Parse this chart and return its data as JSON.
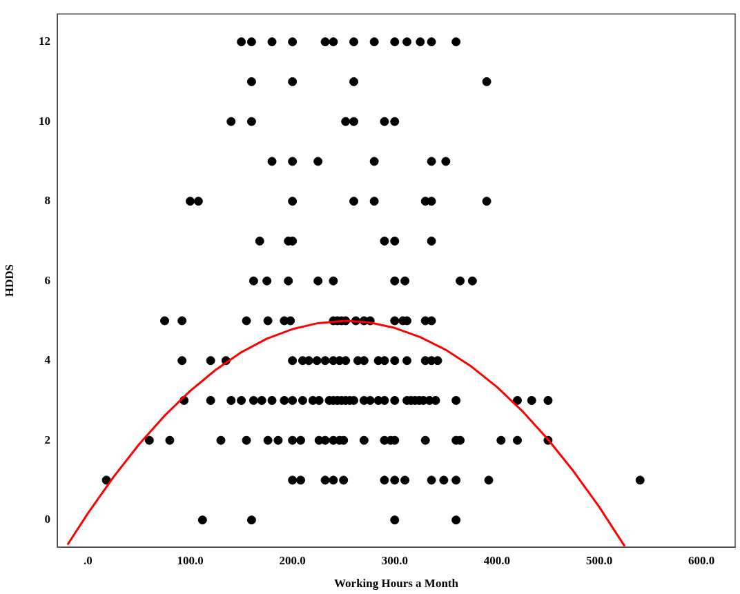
{
  "chart_data": {
    "type": "scatter",
    "xlabel": "Working Hours a Month",
    "ylabel": "HDDS",
    "xlim": [
      -30,
      633
    ],
    "ylim": [
      -0.68,
      12.7
    ],
    "xticks": [
      {
        "value": 0,
        "label": ".0"
      },
      {
        "value": 100,
        "label": "100.0"
      },
      {
        "value": 200,
        "label": "200.0"
      },
      {
        "value": 300,
        "label": "300.0"
      },
      {
        "value": 400,
        "label": "400.0"
      },
      {
        "value": 500,
        "label": "500.0"
      },
      {
        "value": 600,
        "label": "600.0"
      }
    ],
    "yticks": [
      0,
      2,
      4,
      6,
      8,
      10,
      12
    ],
    "grid": false,
    "legend": false,
    "series": [
      {
        "type": "scatter",
        "color": "#000000",
        "marker": "circle",
        "x": [
          150,
          160,
          180,
          200,
          232,
          240,
          260,
          280,
          300,
          312,
          325,
          336,
          360,
          160,
          200,
          260,
          390,
          140,
          160,
          252,
          260,
          290,
          300,
          180,
          200,
          225,
          280,
          336,
          350,
          100,
          108,
          200,
          260,
          280,
          330,
          336,
          390,
          168,
          196,
          200,
          290,
          300,
          336,
          162,
          175,
          196,
          225,
          240,
          300,
          310,
          364,
          376,
          75,
          92,
          155,
          176,
          192,
          198,
          240,
          244,
          248,
          252,
          262,
          270,
          276,
          300,
          308,
          312,
          330,
          336,
          92,
          120,
          135,
          200,
          210,
          216,
          224,
          232,
          240,
          246,
          252,
          264,
          270,
          284,
          290,
          300,
          312,
          330,
          336,
          342,
          94,
          120,
          140,
          150,
          162,
          170,
          180,
          192,
          200,
          210,
          220,
          226,
          236,
          240,
          244,
          248,
          252,
          256,
          260,
          270,
          276,
          284,
          290,
          300,
          312,
          316,
          320,
          324,
          328,
          334,
          340,
          360,
          420,
          434,
          450,
          60,
          80,
          130,
          155,
          176,
          186,
          200,
          208,
          226,
          232,
          240,
          246,
          250,
          270,
          290,
          296,
          300,
          330,
          360,
          364,
          404,
          420,
          450,
          18,
          200,
          208,
          232,
          240,
          250,
          290,
          300,
          310,
          336,
          348,
          360,
          392,
          540,
          112,
          160,
          300,
          360
        ],
        "values": [
          12,
          12,
          12,
          12,
          12,
          12,
          12,
          12,
          12,
          12,
          12,
          12,
          12,
          11,
          11,
          11,
          11,
          10,
          10,
          10,
          10,
          10,
          10,
          9,
          9,
          9,
          9,
          9,
          9,
          8,
          8,
          8,
          8,
          8,
          8,
          8,
          8,
          7,
          7,
          7,
          7,
          7,
          7,
          6,
          6,
          6,
          6,
          6,
          6,
          6,
          6,
          6,
          5,
          5,
          5,
          5,
          5,
          5,
          5,
          5,
          5,
          5,
          5,
          5,
          5,
          5,
          5,
          5,
          5,
          5,
          4,
          4,
          4,
          4,
          4,
          4,
          4,
          4,
          4,
          4,
          4,
          4,
          4,
          4,
          4,
          4,
          4,
          4,
          4,
          4,
          3,
          3,
          3,
          3,
          3,
          3,
          3,
          3,
          3,
          3,
          3,
          3,
          3,
          3,
          3,
          3,
          3,
          3,
          3,
          3,
          3,
          3,
          3,
          3,
          3,
          3,
          3,
          3,
          3,
          3,
          3,
          3,
          3,
          3,
          3,
          2,
          2,
          2,
          2,
          2,
          2,
          2,
          2,
          2,
          2,
          2,
          2,
          2,
          2,
          2,
          2,
          2,
          2,
          2,
          2,
          2,
          2,
          2,
          1,
          1,
          1,
          1,
          1,
          1,
          1,
          1,
          1,
          1,
          1,
          1,
          1,
          1,
          0,
          0,
          0,
          0
        ]
      },
      {
        "type": "line",
        "color": "#ff0000",
        "marker": "none",
        "line_style": "solid",
        "x": [
          -20,
          0,
          25,
          50,
          75,
          100,
          125,
          150,
          175,
          200,
          225,
          252,
          275,
          300,
          325,
          350,
          375,
          400,
          425,
          450,
          475,
          500,
          525
        ],
        "values": [
          -0.62,
          0.17,
          1.08,
          1.9,
          2.62,
          3.24,
          3.77,
          4.21,
          4.55,
          4.79,
          4.94,
          5.0,
          4.96,
          4.82,
          4.59,
          4.27,
          3.85,
          3.34,
          2.73,
          2.02,
          1.22,
          0.33,
          -0.66
        ]
      }
    ]
  }
}
